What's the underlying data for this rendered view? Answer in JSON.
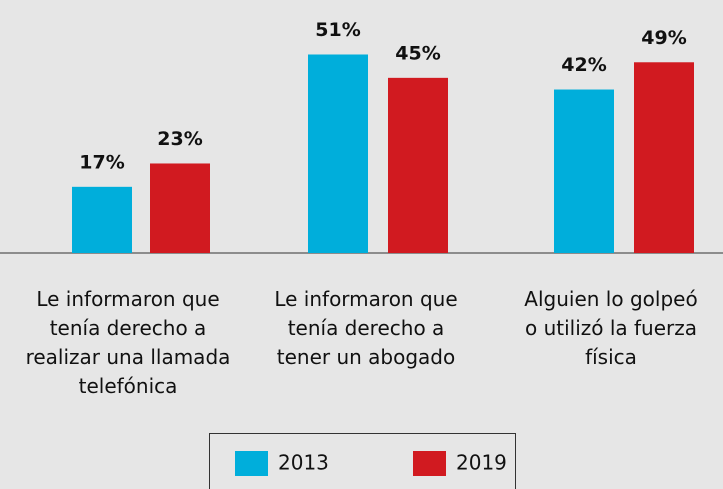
{
  "chart_data": {
    "type": "bar",
    "categories": [
      "Le informaron que\ntenía derecho a\nrealizar una llamada\ntelefónica",
      "Le informaron que\ntenía derecho a\ntener un abogado",
      "Alguien lo golpeó\no utilizó la fuerza\nfísica"
    ],
    "series": [
      {
        "name": "2013",
        "color": "#00aedb",
        "values": [
          17,
          51,
          42
        ],
        "value_labels": [
          "17%",
          "51%",
          "42%"
        ]
      },
      {
        "name": "2019",
        "color": "#d11a20",
        "values": [
          23,
          45,
          49
        ],
        "value_labels": [
          "23%",
          "45%",
          "49%"
        ]
      }
    ],
    "ylim": [
      0,
      65
    ]
  }
}
